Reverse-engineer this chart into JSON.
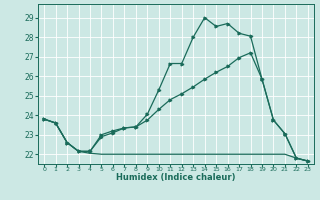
{
  "xlabel": "Humidex (Indice chaleur)",
  "background_color": "#cce8e4",
  "grid_color": "#ffffff",
  "line_color": "#1a6b5a",
  "xlim": [
    -0.5,
    23.5
  ],
  "ylim": [
    21.5,
    29.7
  ],
  "yticks": [
    22,
    23,
    24,
    25,
    26,
    27,
    28,
    29
  ],
  "xticks": [
    0,
    1,
    2,
    3,
    4,
    5,
    6,
    7,
    8,
    9,
    10,
    11,
    12,
    13,
    14,
    15,
    16,
    17,
    18,
    19,
    20,
    21,
    22,
    23
  ],
  "line1_x": [
    0,
    1,
    2,
    3,
    4,
    5,
    6,
    7,
    8,
    9,
    10,
    11,
    12,
    13,
    14,
    15,
    16,
    17,
    18,
    19,
    20,
    21,
    22,
    23
  ],
  "line1_y": [
    23.8,
    23.6,
    22.6,
    22.15,
    22.15,
    22.9,
    23.1,
    23.35,
    23.4,
    24.05,
    25.3,
    26.65,
    26.65,
    28.0,
    29.0,
    28.55,
    28.7,
    28.2,
    28.05,
    25.85,
    23.75,
    23.05,
    21.8,
    21.65
  ],
  "line2_x": [
    0,
    1,
    2,
    3,
    4,
    5,
    6,
    7,
    8,
    9,
    10,
    11,
    12,
    13,
    14,
    15,
    16,
    17,
    18,
    19,
    20,
    21,
    22,
    23
  ],
  "line2_y": [
    23.8,
    23.6,
    22.6,
    22.15,
    22.05,
    22.0,
    22.0,
    22.0,
    22.0,
    22.0,
    22.0,
    22.0,
    22.0,
    22.0,
    22.0,
    22.0,
    22.0,
    22.0,
    22.0,
    22.0,
    22.0,
    22.0,
    21.8,
    21.65
  ],
  "line3_x": [
    0,
    1,
    2,
    3,
    4,
    5,
    6,
    7,
    8,
    9,
    10,
    11,
    12,
    13,
    14,
    15,
    16,
    17,
    18,
    19,
    20,
    21,
    22,
    23
  ],
  "line3_y": [
    23.8,
    23.6,
    22.6,
    22.15,
    22.15,
    23.0,
    23.2,
    23.35,
    23.4,
    23.75,
    24.3,
    24.8,
    25.1,
    25.45,
    25.85,
    26.2,
    26.5,
    26.95,
    27.2,
    25.85,
    23.75,
    23.05,
    21.8,
    21.65
  ]
}
